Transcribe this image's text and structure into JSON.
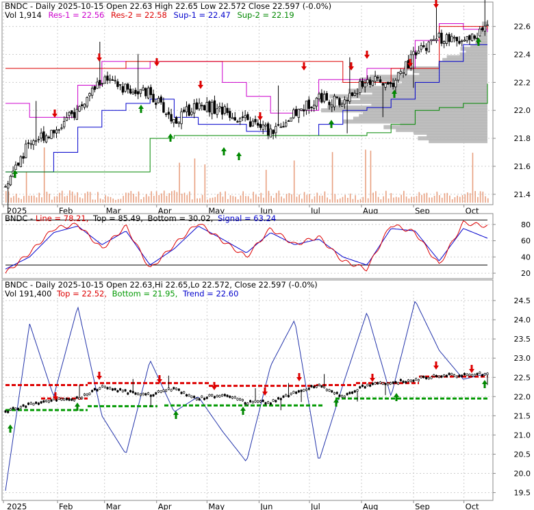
{
  "colors": {
    "price": "#000000",
    "res1": "#cc00cc",
    "res2": "#dd0000",
    "sup1": "#0000cc",
    "sup2": "#008800",
    "volume": "#e8a080",
    "volume_profile": "#b8b8b8",
    "stoch_line": "#dd0000",
    "stoch_signal": "#0000cc",
    "trend_top": "#dd0000",
    "trend_bottom": "#009900",
    "cycle": "#2233aa",
    "arrow_up": "#008800",
    "arrow_down": "#dd0000",
    "grid": "#cccccc"
  },
  "panel1": {
    "ticker": "BNDC",
    "header_line1_plain": " - Daily 2025-10-15 Open 22.63  High 22.65  Low 22.572  Close 22.597 (-0.0%)",
    "vol": "Vol 1,914",
    "res1": "Res-1 = 22.56",
    "res2": "Res-2 = 22.58",
    "sup1": "Sup-1 = 22.47",
    "sup2": "Sup-2 = 22.19"
  },
  "panel2": {
    "ticker": "BNDC",
    "sep": " - ",
    "line": "Line = 78.21,",
    "top": "Top = 85.49,",
    "bottom": "Bottom = 30.02,",
    "signal": "Signal = 63.24"
  },
  "panel3": {
    "ticker": "BNDC",
    "header_line1": " - Daily 2025-10-15 Open 22.63,Hi 22.65,Lo 22.572, Close 22.597 (-0.0%)",
    "vol": "Vol 191,400",
    "top": "Top = 22.52,",
    "bottom": "Bottom = 21.95,",
    "trend": "Trend = 22.60"
  },
  "x_axis_labels": [
    "2025",
    "Feb",
    "Mar",
    "Apr",
    "May",
    "Jun",
    "Jul",
    "Aug",
    "Sep",
    "Oct"
  ],
  "chart_data": [
    {
      "type": "line",
      "y_ticks": [
        "22.6",
        "22.4",
        "22.2",
        "22.0",
        "21.8",
        "21.6",
        "21.4"
      ],
      "ylim": [
        21.35,
        22.75
      ],
      "x": [
        "2025-01-02",
        "2025-01-15",
        "2025-02-01",
        "2025-02-15",
        "2025-03-01",
        "2025-03-15",
        "2025-04-01",
        "2025-04-10",
        "2025-04-20",
        "2025-05-01",
        "2025-05-15",
        "2025-06-01",
        "2025-06-15",
        "2025-07-01",
        "2025-07-15",
        "2025-08-01",
        "2025-08-15",
        "2025-09-01",
        "2025-09-15",
        "2025-10-01",
        "2025-10-15"
      ],
      "series": [
        {
          "name": "Close",
          "values": [
            21.45,
            21.78,
            21.85,
            22.0,
            22.22,
            22.15,
            22.12,
            21.92,
            22.05,
            22.0,
            21.92,
            21.85,
            21.97,
            22.1,
            22.05,
            22.22,
            22.18,
            22.4,
            22.52,
            22.48,
            22.6
          ]
        },
        {
          "name": "Res-1",
          "values": [
            22.05,
            21.95,
            21.95,
            22.18,
            22.35,
            22.3,
            22.35,
            22.35,
            22.35,
            22.2,
            22.1,
            21.98,
            22.0,
            22.22,
            22.22,
            22.3,
            22.3,
            22.5,
            22.62,
            22.58,
            22.56
          ]
        },
        {
          "name": "Res-2",
          "values": [
            22.3,
            22.3,
            22.3,
            22.3,
            22.3,
            22.35,
            22.35,
            22.35,
            22.35,
            22.35,
            22.35,
            22.35,
            22.35,
            22.35,
            22.2,
            22.2,
            22.3,
            22.3,
            22.6,
            22.6,
            22.58
          ]
        },
        {
          "name": "Sup-1",
          "values": [
            21.56,
            21.56,
            21.7,
            21.88,
            22.0,
            22.05,
            22.08,
            21.95,
            21.9,
            21.9,
            21.85,
            21.82,
            21.82,
            21.9,
            22.0,
            22.02,
            22.08,
            22.2,
            22.35,
            22.47,
            22.47
          ]
        },
        {
          "name": "Sup-2",
          "values": [
            21.56,
            21.56,
            21.56,
            21.56,
            21.56,
            21.56,
            21.8,
            21.82,
            21.82,
            21.82,
            21.82,
            21.82,
            21.82,
            21.82,
            21.82,
            21.84,
            21.9,
            22.0,
            22.02,
            22.05,
            22.19
          ]
        }
      ]
    },
    {
      "type": "line",
      "y_ticks": [
        "80",
        "60",
        "40",
        "20"
      ],
      "ylim": [
        15,
        90
      ],
      "series": [
        {
          "name": "Line",
          "values": [
            20,
            45,
            75,
            80,
            50,
            78,
            25,
            55,
            82,
            60,
            40,
            75,
            55,
            65,
            35,
            25,
            80,
            70,
            30,
            82,
            78
          ]
        },
        {
          "name": "Signal",
          "values": [
            25,
            40,
            70,
            78,
            55,
            72,
            30,
            50,
            78,
            62,
            45,
            70,
            55,
            62,
            40,
            30,
            75,
            72,
            35,
            75,
            63
          ]
        },
        {
          "name": "Top",
          "values": [
            85.49
          ]
        },
        {
          "name": "Bottom",
          "values": [
            30.02
          ]
        }
      ]
    },
    {
      "type": "line",
      "y_ticks": [
        "24.5",
        "24.0",
        "23.5",
        "23.0",
        "22.5",
        "22.0",
        "21.5",
        "21.0",
        "20.5",
        "20.0",
        "19.5"
      ],
      "ylim": [
        19.35,
        24.75
      ],
      "series": [
        {
          "name": "Price",
          "values": [
            21.6,
            21.8,
            21.9,
            21.95,
            22.25,
            22.12,
            22.05,
            22.2,
            21.95,
            22.05,
            21.85,
            21.85,
            22.1,
            22.3,
            22.0,
            22.3,
            22.35,
            22.45,
            22.55,
            22.55,
            22.6
          ]
        },
        {
          "name": "Cycle",
          "values": [
            19.55,
            23.9,
            22.0,
            24.35,
            21.5,
            20.5,
            22.95,
            21.6,
            22.0,
            21.1,
            20.3,
            22.8,
            24.0,
            20.3,
            22.3,
            24.2,
            22.0,
            24.5,
            23.2,
            22.45,
            22.6
          ]
        },
        {
          "name": "Top",
          "values": [
            22.3,
            21.95,
            22.35,
            22.3,
            22.35,
            22.2,
            22.15,
            22.35,
            22.4,
            22.52
          ]
        },
        {
          "name": "Bottom",
          "values": [
            21.65,
            21.75,
            21.72,
            21.82,
            21.77,
            21.98,
            21.95
          ]
        }
      ]
    }
  ]
}
